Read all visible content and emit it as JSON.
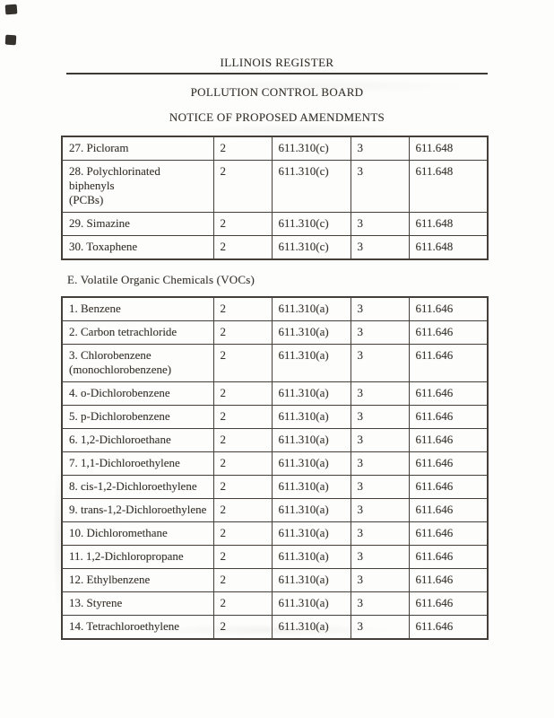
{
  "header": {
    "register_title": "ILLINOIS REGISTER",
    "board_title": "POLLUTION CONTROL BOARD",
    "notice_title": "NOTICE OF PROPOSED AMENDMENTS"
  },
  "section_e": {
    "label": "E. Volatile Organic Chemicals (VOCs)"
  },
  "tables": [
    {
      "rows": [
        [
          "27. Picloram",
          "2",
          "611.310(c)",
          "3",
          "611.648"
        ],
        [
          "28. Polychlorinated biphenyls\n(PCBs)",
          "2",
          "611.310(c)",
          "3",
          "611.648"
        ],
        [
          "29. Simazine",
          "2",
          "611.310(c)",
          "3",
          "611.648"
        ],
        [
          "30. Toxaphene",
          "2",
          "611.310(c)",
          "3",
          "611.648"
        ]
      ]
    },
    {
      "rows": [
        [
          "1. Benzene",
          "2",
          "611.310(a)",
          "3",
          "611.646"
        ],
        [
          "2. Carbon tetrachloride",
          "2",
          "611.310(a)",
          "3",
          "611.646"
        ],
        [
          "3. Chlorobenzene\n(monochlorobenzene)",
          "2",
          "611.310(a)",
          "3",
          "611.646"
        ],
        [
          "4. o-Dichlorobenzene",
          "2",
          "611.310(a)",
          "3",
          "611.646"
        ],
        [
          "5. p-Dichlorobenzene",
          "2",
          "611.310(a)",
          "3",
          "611.646"
        ],
        [
          "6. 1,2-Dichloroethane",
          "2",
          "611.310(a)",
          "3",
          "611.646"
        ],
        [
          "7. 1,1-Dichloroethylene",
          "2",
          "611.310(a)",
          "3",
          "611.646"
        ],
        [
          "8. cis-1,2-Dichloroethylene",
          "2",
          "611.310(a)",
          "3",
          "611.646"
        ],
        [
          "9. trans-1,2-Dichloroethylene",
          "2",
          "611.310(a)",
          "3",
          "611.646"
        ],
        [
          "10. Dichloromethane",
          "2",
          "611.310(a)",
          "3",
          "611.646"
        ],
        [
          "11. 1,2-Dichloropropane",
          "2",
          "611.310(a)",
          "3",
          "611.646"
        ],
        [
          "12. Ethylbenzene",
          "2",
          "611.310(a)",
          "3",
          "611.646"
        ],
        [
          "13. Styrene",
          "2",
          "611.310(a)",
          "3",
          "611.646"
        ],
        [
          "14. Tetrachloroethylene",
          "2",
          "611.310(a)",
          "3",
          "611.646"
        ]
      ]
    }
  ],
  "colors": {
    "ink": "#38342e",
    "border": "#443f39",
    "page_background": "#fdfdfc"
  }
}
